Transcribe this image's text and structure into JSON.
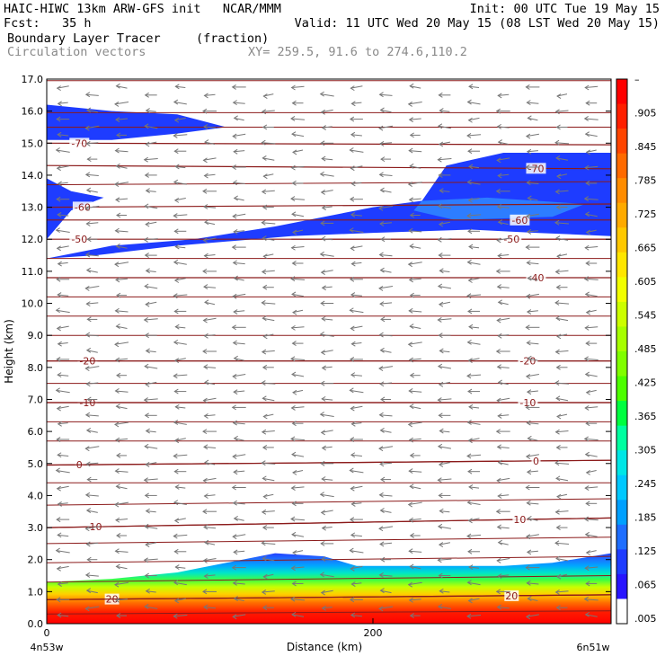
{
  "header": {
    "line1_left": "HAIC-HIWC 13km ARW-GFS init   NCAR/MMM",
    "line1_right": "Init: 00 UTC Tue 19 May 15",
    "line2_left": "Fcst:   35 h",
    "line2_right": "Valid: 11 UTC Wed 20 May 15 (08 LST Wed 20 May 15)",
    "field_name": "Boundary Layer Tracer",
    "field_units": "(fraction)",
    "vectors_label": "Circulation vectors",
    "xy_label": "XY= 259.5, 91.6 to 274.6,110.2"
  },
  "chart_data": {
    "type": "heatmap",
    "xlabel": "Distance (km)",
    "ylabel": "Height (km)",
    "xlim": [
      0,
      346
    ],
    "ylim": [
      0,
      17
    ],
    "x_ticks": [
      {
        "v": 0,
        "label": "0"
      },
      {
        "v": 200,
        "label": "200"
      }
    ],
    "x_end_labels": {
      "left": "4n53w",
      "right": "6n51w"
    },
    "y_ticks": [
      "0.0",
      "1.0",
      "2.0",
      "3.0",
      "4.0",
      "5.0",
      "6.0",
      "7.0",
      "8.0",
      "9.0",
      "10.0",
      "11.0",
      "12.0",
      "13.0",
      "14.0",
      "15.0",
      "16.0",
      "17.0"
    ],
    "colorbar": {
      "labels": [
        "–",
        ".905",
        ".845",
        ".785",
        ".725",
        ".665",
        ".605",
        ".545",
        ".485",
        ".425",
        ".365",
        ".305",
        ".245",
        ".185",
        ".125",
        ".065",
        ".005"
      ],
      "colors": [
        "#ff0000",
        "#ff2000",
        "#ff4500",
        "#ff6a00",
        "#ff8c00",
        "#ffaa00",
        "#ffc800",
        "#ffe600",
        "#f2ff00",
        "#ccff00",
        "#a6ff00",
        "#80ff00",
        "#4dff00",
        "#00ff40",
        "#00ffa0",
        "#00e6e6",
        "#00c8ff",
        "#00a0ff",
        "#1e6eff",
        "#1e3cff",
        "#2814ff",
        "#ffffff"
      ]
    },
    "field_regions": [
      {
        "level": "low",
        "color": "#1e3cff",
        "points": [
          [
            0,
            16.2
          ],
          [
            40,
            16.0
          ],
          [
            80,
            15.9
          ],
          [
            110,
            15.5
          ],
          [
            80,
            15.3
          ],
          [
            40,
            15.1
          ],
          [
            0,
            15.1
          ]
        ]
      },
      {
        "level": "low",
        "color": "#1e3cff",
        "points": [
          [
            0,
            13.9
          ],
          [
            15,
            13.5
          ],
          [
            35,
            13.3
          ],
          [
            15,
            12.9
          ],
          [
            0,
            12.0
          ]
        ]
      },
      {
        "level": "low",
        "color": "#1e3cff",
        "points": [
          [
            0,
            11.4
          ],
          [
            40,
            11.8
          ],
          [
            90,
            12.0
          ],
          [
            140,
            12.4
          ],
          [
            200,
            13.0
          ],
          [
            230,
            13.2
          ],
          [
            245,
            14.3
          ],
          [
            280,
            14.7
          ],
          [
            346,
            14.7
          ],
          [
            346,
            12.1
          ],
          [
            300,
            12.2
          ],
          [
            260,
            12.3
          ],
          [
            200,
            12.2
          ],
          [
            150,
            12.1
          ],
          [
            80,
            11.8
          ],
          [
            30,
            11.5
          ],
          [
            0,
            11.4
          ]
        ]
      },
      {
        "level": "mid",
        "color": "#2d7dff",
        "points": [
          [
            230,
            13.2
          ],
          [
            270,
            13.3
          ],
          [
            330,
            13.1
          ],
          [
            310,
            12.7
          ],
          [
            250,
            12.6
          ],
          [
            225,
            12.9
          ]
        ]
      }
    ],
    "boundary_layer_top_km": [
      [
        0,
        1.3
      ],
      [
        40,
        1.4
      ],
      [
        80,
        1.6
      ],
      [
        110,
        1.9
      ],
      [
        140,
        2.2
      ],
      [
        170,
        2.1
      ],
      [
        190,
        1.8
      ],
      [
        230,
        1.8
      ],
      [
        280,
        1.8
      ],
      [
        310,
        1.9
      ],
      [
        346,
        2.2
      ]
    ],
    "isotherms": [
      {
        "temp": "-70",
        "points": [
          [
            0,
            15.0
          ],
          [
            346,
            14.95
          ]
        ],
        "label_x": 20
      },
      {
        "temp": "-70",
        "points": [
          [
            0,
            14.3
          ],
          [
            346,
            14.2
          ]
        ],
        "label_x": 300
      },
      {
        "temp": "-60",
        "points": [
          [
            0,
            13.0
          ],
          [
            346,
            13.1
          ]
        ],
        "label_x": 22
      },
      {
        "temp": "-60",
        "points": [
          [
            0,
            12.6
          ],
          [
            346,
            12.6
          ]
        ],
        "label_x": 290
      },
      {
        "temp": "-50",
        "points": [
          [
            0,
            12.0
          ],
          [
            346,
            12.0
          ]
        ],
        "label_x": 20
      },
      {
        "temp": "-50",
        "points": [
          [
            150,
            12.0
          ],
          [
            346,
            12.0
          ]
        ],
        "label_x": 285
      },
      {
        "temp": "-40",
        "points": [
          [
            0,
            10.8
          ],
          [
            346,
            10.8
          ]
        ],
        "label_x": 300
      },
      {
        "temp": "-20",
        "points": [
          [
            0,
            8.2
          ],
          [
            346,
            8.2
          ]
        ],
        "label_x": 25
      },
      {
        "temp": "-20",
        "points": [
          [
            0,
            8.2
          ],
          [
            346,
            8.2
          ]
        ],
        "label_x": 295
      },
      {
        "temp": "-10",
        "points": [
          [
            0,
            6.9
          ],
          [
            346,
            6.9
          ]
        ],
        "label_x": 25
      },
      {
        "temp": "-10",
        "points": [
          [
            0,
            6.9
          ],
          [
            346,
            6.9
          ]
        ],
        "label_x": 295
      },
      {
        "temp": "0",
        "points": [
          [
            0,
            4.95
          ],
          [
            346,
            5.1
          ]
        ],
        "label_x": 20
      },
      {
        "temp": "0",
        "points": [
          [
            0,
            4.95
          ],
          [
            346,
            5.1
          ]
        ],
        "label_x": 300
      },
      {
        "temp": "10",
        "points": [
          [
            0,
            3.0
          ],
          [
            346,
            3.3
          ]
        ],
        "label_x": 30
      },
      {
        "temp": "10",
        "points": [
          [
            0,
            3.0
          ],
          [
            346,
            3.3
          ]
        ],
        "label_x": 290
      },
      {
        "temp": "20",
        "points": [
          [
            0,
            0.75
          ],
          [
            346,
            0.9
          ]
        ],
        "label_x": 40
      },
      {
        "temp": "20",
        "points": [
          [
            0,
            0.75
          ],
          [
            346,
            0.9
          ]
        ],
        "label_x": 285
      }
    ],
    "extra_contours": [
      {
        "points": [
          [
            0,
            16.95
          ],
          [
            346,
            16.95
          ]
        ]
      },
      {
        "points": [
          [
            0,
            15.95
          ],
          [
            346,
            15.95
          ]
        ]
      },
      {
        "points": [
          [
            0,
            15.5
          ],
          [
            346,
            15.5
          ]
        ]
      },
      {
        "points": [
          [
            0,
            13.7
          ],
          [
            346,
            13.8
          ]
        ]
      },
      {
        "points": [
          [
            0,
            11.4
          ],
          [
            346,
            11.4
          ]
        ]
      },
      {
        "points": [
          [
            0,
            10.2
          ],
          [
            346,
            10.2
          ]
        ]
      },
      {
        "points": [
          [
            0,
            9.6
          ],
          [
            346,
            9.6
          ]
        ]
      },
      {
        "points": [
          [
            0,
            9.0
          ],
          [
            346,
            9.0
          ]
        ]
      },
      {
        "points": [
          [
            0,
            7.5
          ],
          [
            346,
            7.5
          ]
        ]
      },
      {
        "points": [
          [
            0,
            6.3
          ],
          [
            346,
            6.3
          ]
        ]
      },
      {
        "points": [
          [
            0,
            5.7
          ],
          [
            346,
            5.7
          ]
        ]
      },
      {
        "points": [
          [
            0,
            4.4
          ],
          [
            346,
            4.4
          ]
        ]
      },
      {
        "points": [
          [
            0,
            3.7
          ],
          [
            346,
            3.9
          ]
        ]
      },
      {
        "points": [
          [
            0,
            2.5
          ],
          [
            346,
            2.7
          ]
        ]
      },
      {
        "points": [
          [
            0,
            1.9
          ],
          [
            346,
            2.1
          ]
        ]
      },
      {
        "points": [
          [
            0,
            1.3
          ],
          [
            346,
            1.5
          ]
        ]
      },
      {
        "points": [
          [
            0,
            0.3
          ],
          [
            346,
            0.4
          ]
        ]
      }
    ],
    "vector_columns_km": [
      10,
      28,
      46,
      64,
      82,
      100,
      118,
      136,
      154,
      172,
      190,
      208,
      226,
      244,
      262,
      280,
      298,
      316,
      334
    ],
    "vector_row_spacing_km": 0.5,
    "vector_direction": "westward (pointing left)"
  }
}
